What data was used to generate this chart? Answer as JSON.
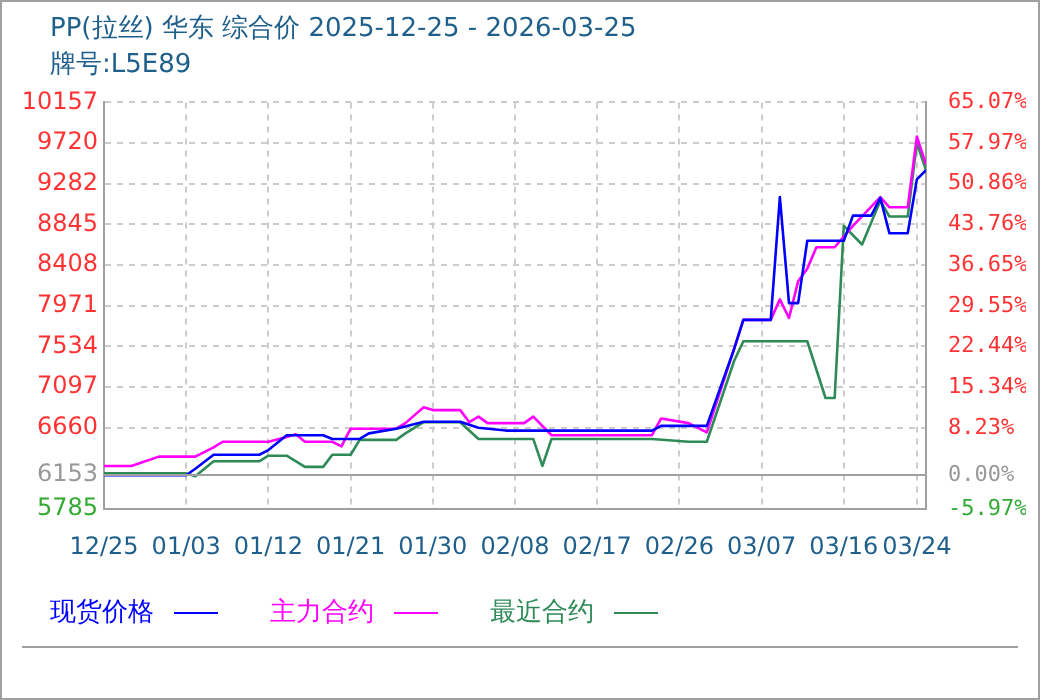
{
  "chart_data": {
    "type": "line",
    "title": "PP(拉丝) 华东 综合价 2025-12-25 - 2026-03-25",
    "subtitle": "牌号:L5E89",
    "xlim": [
      "2025-12-25",
      "2026-03-25"
    ],
    "xticks": [
      {
        "value": "2025-12-25",
        "label": "12/25"
      },
      {
        "value": "2026-01-03",
        "label": "01/03"
      },
      {
        "value": "2026-01-12",
        "label": "01/12"
      },
      {
        "value": "2026-01-21",
        "label": "01/21"
      },
      {
        "value": "2026-01-30",
        "label": "01/30"
      },
      {
        "value": "2026-02-08",
        "label": "02/08"
      },
      {
        "value": "2026-02-17",
        "label": "02/17"
      },
      {
        "value": "2026-02-26",
        "label": "02/26"
      },
      {
        "value": "2026-03-07",
        "label": "03/07"
      },
      {
        "value": "2026-03-16",
        "label": "03/16"
      },
      {
        "value": "2026-03-24",
        "label": "03/24"
      }
    ],
    "ylim": [
      5785,
      10157
    ],
    "yticks": [
      5785,
      6153,
      6660,
      7097,
      7534,
      7971,
      8408,
      8845,
      9282,
      9720,
      10157
    ],
    "y2lim": [
      -5.97,
      65.07
    ],
    "y2ticks": [
      {
        "value": -5.97,
        "label": "-5.97%"
      },
      {
        "value": 0,
        "label": "0.00%"
      },
      {
        "value": 8.23,
        "label": "8.23%"
      },
      {
        "value": 15.34,
        "label": "15.34%"
      },
      {
        "value": 22.44,
        "label": "22.44%"
      },
      {
        "value": 29.55,
        "label": "29.55%"
      },
      {
        "value": 36.65,
        "label": "36.65%"
      },
      {
        "value": 43.76,
        "label": "43.76%"
      },
      {
        "value": 50.86,
        "label": "50.86%"
      },
      {
        "value": 57.97,
        "label": "57.97%"
      },
      {
        "value": 65.07,
        "label": "65.07%"
      }
    ],
    "ref_lines": [
      {
        "axis": "y2",
        "value": 0,
        "color": "#a0a0a0"
      }
    ],
    "grid": true,
    "legend": "bottom",
    "marker": "none",
    "line_style": "solid",
    "series": [
      {
        "name": "现货价格",
        "color": "#0000ff",
        "x": [
          "2025-12-25",
          "2026-01-03",
          "2026-01-04",
          "2026-01-06",
          "2026-01-11",
          "2026-01-12",
          "2026-01-14",
          "2026-01-18",
          "2026-01-19",
          "2026-01-22",
          "2026-01-23",
          "2026-01-26",
          "2026-01-29",
          "2026-02-02",
          "2026-02-04",
          "2026-02-07",
          "2026-02-23",
          "2026-02-24",
          "2026-03-01",
          "2026-03-04",
          "2026-03-05",
          "2026-03-08",
          "2026-03-09",
          "2026-03-10",
          "2026-03-11",
          "2026-03-12",
          "2026-03-16",
          "2026-03-17",
          "2026-03-19",
          "2026-03-20",
          "2026-03-21",
          "2026-03-23",
          "2026-03-24",
          "2026-03-25"
        ],
        "values": [
          6150,
          6150,
          6220,
          6370,
          6370,
          6420,
          6580,
          6580,
          6540,
          6540,
          6600,
          6650,
          6725,
          6725,
          6660,
          6630,
          6630,
          6680,
          6680,
          7510,
          7820,
          7820,
          9140,
          8000,
          8000,
          8670,
          8670,
          8940,
          8940,
          9130,
          8750,
          8750,
          9330,
          9430
        ]
      },
      {
        "name": "主力合约",
        "color": "#ff00ff",
        "x": [
          "2025-12-25",
          "2025-12-28",
          "2025-12-31",
          "2026-01-04",
          "2026-01-06",
          "2026-01-07",
          "2026-01-12",
          "2026-01-14",
          "2026-01-15",
          "2026-01-16",
          "2026-01-19",
          "2026-01-20",
          "2026-01-21",
          "2026-01-26",
          "2026-01-27",
          "2026-01-29",
          "2026-01-30",
          "2026-02-02",
          "2026-02-03",
          "2026-02-04",
          "2026-02-05",
          "2026-02-09",
          "2026-02-10",
          "2026-02-12",
          "2026-02-23",
          "2026-02-24",
          "2026-02-27",
          "2026-03-01",
          "2026-03-04",
          "2026-03-05",
          "2026-03-08",
          "2026-03-09",
          "2026-03-10",
          "2026-03-11",
          "2026-03-12",
          "2026-03-13",
          "2026-03-15",
          "2026-03-17",
          "2026-03-20",
          "2026-03-21",
          "2026-03-23",
          "2026-03-24",
          "2026-03-25"
        ],
        "values": [
          6250,
          6250,
          6350,
          6350,
          6450,
          6510,
          6510,
          6560,
          6590,
          6510,
          6510,
          6460,
          6650,
          6650,
          6710,
          6880,
          6850,
          6850,
          6720,
          6780,
          6710,
          6710,
          6780,
          6580,
          6580,
          6760,
          6710,
          6610,
          7510,
          7820,
          7820,
          8040,
          7840,
          8235,
          8370,
          8600,
          8600,
          8830,
          9140,
          9030,
          9030,
          9790,
          9490
        ]
      },
      {
        "name": "最近合约",
        "color": "#2e8b57",
        "x": [
          "2025-12-25",
          "2026-01-03",
          "2026-01-04",
          "2026-01-06",
          "2026-01-11",
          "2026-01-12",
          "2026-01-14",
          "2026-01-16",
          "2026-01-18",
          "2026-01-19",
          "2026-01-21",
          "2026-01-22",
          "2026-01-26",
          "2026-01-27",
          "2026-01-29",
          "2026-02-02",
          "2026-02-04",
          "2026-02-10",
          "2026-02-11",
          "2026-02-12",
          "2026-02-23",
          "2026-02-27",
          "2026-03-01",
          "2026-03-04",
          "2026-03-05",
          "2026-03-12",
          "2026-03-14",
          "2026-03-15",
          "2026-03-16",
          "2026-03-18",
          "2026-03-20",
          "2026-03-21",
          "2026-03-23",
          "2026-03-24",
          "2026-03-25"
        ],
        "values": [
          6170,
          6170,
          6140,
          6300,
          6300,
          6360,
          6360,
          6240,
          6240,
          6370,
          6370,
          6530,
          6530,
          6600,
          6720,
          6720,
          6540,
          6540,
          6250,
          6540,
          6540,
          6510,
          6510,
          7380,
          7590,
          7590,
          6980,
          6980,
          8830,
          8630,
          9100,
          8930,
          8930,
          9720,
          9430
        ]
      }
    ]
  }
}
